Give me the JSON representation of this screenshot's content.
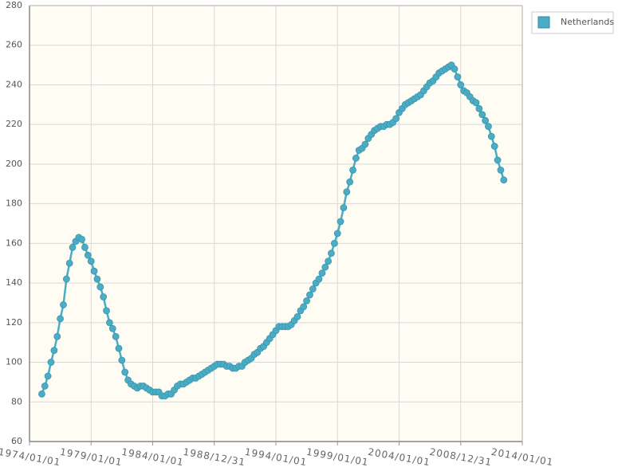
{
  "chart_data": {
    "type": "line",
    "x": [
      "1975/01/01",
      "1975/04/01",
      "1975/07/01",
      "1975/10/01",
      "1976/01/01",
      "1976/04/01",
      "1976/07/01",
      "1976/10/01",
      "1977/01/01",
      "1977/04/01",
      "1977/07/01",
      "1977/10/01",
      "1978/01/01",
      "1978/04/01",
      "1978/07/01",
      "1978/10/01",
      "1979/01/01",
      "1979/04/01",
      "1979/07/01",
      "1979/10/01",
      "1980/01/01",
      "1980/04/01",
      "1980/07/01",
      "1980/10/01",
      "1981/01/01",
      "1981/04/01",
      "1981/07/01",
      "1981/10/01",
      "1982/01/01",
      "1982/04/01",
      "1982/07/01",
      "1982/10/01",
      "1983/01/01",
      "1983/04/01",
      "1983/07/01",
      "1983/10/01",
      "1984/01/01",
      "1984/04/01",
      "1984/07/01",
      "1984/10/01",
      "1985/01/01",
      "1985/04/01",
      "1985/07/01",
      "1985/10/01",
      "1986/01/01",
      "1986/04/01",
      "1986/07/01",
      "1986/10/01",
      "1987/01/01",
      "1987/04/01",
      "1987/07/01",
      "1987/10/01",
      "1988/01/01",
      "1988/04/01",
      "1988/07/01",
      "1988/10/01",
      "1989/01/01",
      "1989/04/01",
      "1989/07/01",
      "1989/10/01",
      "1990/01/01",
      "1990/04/01",
      "1990/07/01",
      "1990/10/01",
      "1991/01/01",
      "1991/04/01",
      "1991/07/01",
      "1991/10/01",
      "1992/01/01",
      "1992/04/01",
      "1992/07/01",
      "1992/10/01",
      "1993/01/01",
      "1993/04/01",
      "1993/07/01",
      "1993/10/01",
      "1994/01/01",
      "1994/04/01",
      "1994/07/01",
      "1994/10/01",
      "1995/01/01",
      "1995/04/01",
      "1995/07/01",
      "1995/10/01",
      "1996/01/01",
      "1996/04/01",
      "1996/07/01",
      "1996/10/01",
      "1997/01/01",
      "1997/04/01",
      "1997/07/01",
      "1997/10/01",
      "1998/01/01",
      "1998/04/01",
      "1998/07/01",
      "1998/10/01",
      "1999/01/01",
      "1999/04/01",
      "1999/07/01",
      "1999/10/01",
      "2000/01/01",
      "2000/04/01",
      "2000/07/01",
      "2000/10/01",
      "2001/01/01",
      "2001/04/01",
      "2001/07/01",
      "2001/10/01",
      "2002/01/01",
      "2002/04/01",
      "2002/07/01",
      "2002/10/01",
      "2003/01/01",
      "2003/04/01",
      "2003/07/01",
      "2003/10/01",
      "2004/01/01",
      "2004/04/01",
      "2004/07/01",
      "2004/10/01",
      "2005/01/01",
      "2005/04/01",
      "2005/07/01",
      "2005/10/01",
      "2006/01/01",
      "2006/04/01",
      "2006/07/01",
      "2006/10/01",
      "2007/01/01",
      "2007/04/01",
      "2007/07/01",
      "2007/10/01",
      "2008/01/01",
      "2008/04/01",
      "2008/07/01",
      "2008/10/01",
      "2009/01/01",
      "2009/04/01",
      "2009/07/01",
      "2009/10/01",
      "2010/01/01",
      "2010/04/01",
      "2010/07/01",
      "2010/10/01",
      "2011/01/01",
      "2011/04/01",
      "2011/07/01",
      "2011/10/01",
      "2012/01/01",
      "2012/04/01",
      "2012/07/01"
    ],
    "series": [
      {
        "name": "Netherlands",
        "color": "#4bacc6",
        "values": [
          84,
          88,
          93,
          100,
          106,
          113,
          122,
          129,
          142,
          150,
          158,
          161,
          163,
          162,
          158,
          154,
          151,
          146,
          142,
          138,
          133,
          126,
          120,
          117,
          113,
          107,
          101,
          95,
          91,
          89,
          88,
          87,
          88,
          88,
          87,
          86,
          85,
          85,
          85,
          83,
          83,
          84,
          84,
          86,
          88,
          89,
          89,
          90,
          91,
          92,
          92,
          93,
          94,
          95,
          96,
          97,
          98,
          99,
          99,
          99,
          98,
          98,
          97,
          97,
          98,
          98,
          100,
          101,
          102,
          104,
          105,
          107,
          108,
          110,
          112,
          114,
          116,
          118,
          118,
          118,
          118,
          119,
          121,
          123,
          126,
          128,
          131,
          134,
          137,
          140,
          142,
          145,
          148,
          151,
          155,
          160,
          165,
          171,
          178,
          186,
          191,
          197,
          203,
          207,
          208,
          210,
          213,
          215,
          217,
          218,
          219,
          219,
          220,
          220,
          221,
          223,
          226,
          228,
          230,
          231,
          232,
          233,
          234,
          235,
          237,
          239,
          241,
          242,
          244,
          246,
          247,
          248,
          249,
          250,
          248,
          244,
          240,
          237,
          236,
          234,
          232,
          231,
          228,
          225,
          222,
          219,
          214,
          209,
          202,
          197,
          192
        ]
      }
    ],
    "xlim": [
      "1974/01/01",
      "2014/01/01"
    ],
    "xticks": [
      "1974/01/01",
      "1979/01/01",
      "1984/01/01",
      "1988/12/31",
      "1994/01/01",
      "1999/01/01",
      "2004/01/01",
      "2008/12/31",
      "2014/01/01"
    ],
    "ylim": [
      60,
      280
    ],
    "yticks": [
      60,
      80,
      100,
      120,
      140,
      160,
      180,
      200,
      220,
      240,
      260,
      280
    ],
    "grid": true,
    "legend": "right"
  }
}
